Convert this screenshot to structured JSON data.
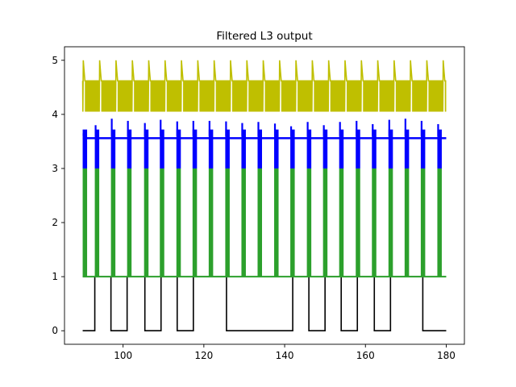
{
  "chart_data": {
    "type": "line",
    "title": "Filtered L3 output",
    "xlabel": "",
    "ylabel": "",
    "xlim": [
      85.5,
      184.5
    ],
    "ylim": [
      -0.25,
      5.25
    ],
    "xticks": [
      100,
      120,
      140,
      160,
      180
    ],
    "yticks": [
      0,
      1,
      2,
      3,
      4,
      5
    ],
    "grid": false,
    "series": [
      {
        "color": "#000000",
        "x": [
          90,
          93.0,
          93.0,
          97.0,
          97.0,
          101.0,
          101.0,
          105.4,
          105.4,
          109.4,
          109.4,
          113.4,
          113.4,
          117.4,
          117.4,
          125.6,
          125.6,
          142.0,
          142.0,
          146.0,
          146.0,
          150.0,
          150.0,
          154.0,
          154.0,
          158.0,
          158.0,
          162.2,
          162.2,
          166.2,
          166.2,
          174.2,
          174.2,
          180
        ],
        "y": [
          0,
          0,
          1,
          1,
          0,
          0,
          1,
          1,
          0,
          0,
          1,
          1,
          0,
          0,
          1,
          1,
          0,
          0,
          1,
          1,
          0,
          0,
          1,
          1,
          0,
          0,
          1,
          1,
          0,
          0,
          1,
          1,
          0,
          0
        ]
      },
      {
        "color": "#2ca02c",
        "baseline": 1.0,
        "pulse_top": 3.0,
        "pulse_width": 1.1,
        "pulse_starts": [
          90.0,
          93.0,
          97.0,
          101.0,
          105.2,
          109.1,
          113.2,
          117.2,
          121.2,
          125.3,
          129.3,
          133.3,
          137.4,
          141.4,
          145.5,
          149.5,
          153.5,
          157.6,
          161.6,
          165.7,
          169.7,
          173.7,
          177.8
        ]
      },
      {
        "color": "#0000ff",
        "baseline": 3.56,
        "burst_bottom": 3.0,
        "burst_width": 1.1,
        "burst_starts": [
          90.0,
          93.0,
          97.0,
          101.0,
          105.2,
          109.1,
          113.2,
          117.2,
          121.2,
          125.3,
          129.3,
          133.3,
          137.4,
          141.4,
          145.5,
          149.5,
          153.5,
          157.6,
          161.6,
          165.7,
          169.7,
          173.7,
          177.8
        ],
        "burst_peaks": [
          3.65,
          3.8,
          3.92,
          3.88,
          3.84,
          3.9,
          3.87,
          3.88,
          3.88,
          3.87,
          3.84,
          3.86,
          3.83,
          3.78,
          3.86,
          3.8,
          3.86,
          3.88,
          3.82,
          3.9,
          3.92,
          3.88,
          3.82
        ]
      },
      {
        "color": "#bfbf00",
        "period": 4.05,
        "first": 90.0,
        "last": 180,
        "top": 5.0,
        "upper": 4.62,
        "lower": 4.05
      }
    ]
  }
}
